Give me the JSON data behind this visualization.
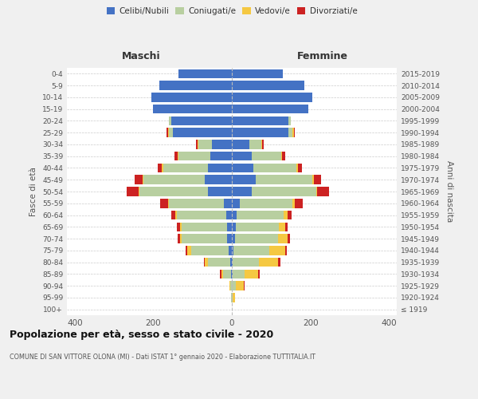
{
  "age_groups": [
    "100+",
    "95-99",
    "90-94",
    "85-89",
    "80-84",
    "75-79",
    "70-74",
    "65-69",
    "60-64",
    "55-59",
    "50-54",
    "45-49",
    "40-44",
    "35-39",
    "30-34",
    "25-29",
    "20-24",
    "15-19",
    "10-14",
    "5-9",
    "0-4"
  ],
  "birth_years": [
    "≤ 1919",
    "1920-1924",
    "1925-1929",
    "1930-1934",
    "1935-1939",
    "1940-1944",
    "1945-1949",
    "1950-1954",
    "1955-1959",
    "1960-1964",
    "1965-1969",
    "1970-1974",
    "1975-1979",
    "1980-1984",
    "1985-1989",
    "1990-1994",
    "1995-1999",
    "2000-2004",
    "2005-2009",
    "2010-2014",
    "2015-2019"
  ],
  "maschi": {
    "celibi": [
      0,
      0,
      0,
      2,
      5,
      8,
      12,
      12,
      15,
      20,
      60,
      70,
      60,
      55,
      50,
      150,
      155,
      200,
      205,
      185,
      135
    ],
    "coniugati": [
      0,
      2,
      5,
      20,
      55,
      95,
      115,
      115,
      125,
      140,
      175,
      155,
      115,
      80,
      35,
      10,
      5,
      0,
      0,
      0,
      0
    ],
    "vedovi": [
      0,
      0,
      2,
      5,
      8,
      10,
      5,
      5,
      5,
      3,
      3,
      3,
      3,
      3,
      3,
      3,
      0,
      0,
      0,
      0,
      0
    ],
    "divorziati": [
      0,
      0,
      0,
      3,
      3,
      5,
      5,
      8,
      10,
      20,
      30,
      20,
      10,
      8,
      3,
      3,
      0,
      0,
      0,
      0,
      0
    ]
  },
  "femmine": {
    "nubili": [
      0,
      0,
      0,
      2,
      3,
      5,
      8,
      10,
      12,
      20,
      50,
      60,
      55,
      50,
      45,
      145,
      145,
      195,
      205,
      185,
      130
    ],
    "coniugate": [
      0,
      3,
      10,
      30,
      65,
      90,
      110,
      110,
      120,
      135,
      165,
      145,
      110,
      75,
      30,
      10,
      5,
      0,
      0,
      0,
      0
    ],
    "vedove": [
      0,
      5,
      20,
      35,
      50,
      40,
      25,
      15,
      10,
      5,
      3,
      3,
      3,
      3,
      3,
      3,
      0,
      0,
      0,
      0,
      0
    ],
    "divorziate": [
      0,
      0,
      2,
      3,
      5,
      5,
      5,
      8,
      10,
      20,
      30,
      20,
      10,
      8,
      3,
      3,
      0,
      0,
      0,
      0,
      0
    ]
  },
  "colors": {
    "celibi": "#4472c4",
    "coniugati": "#b8cfa0",
    "vedovi": "#f5c842",
    "divorziati": "#cc2222"
  },
  "xlim": 420,
  "title": "Popolazione per età, sesso e stato civile - 2020",
  "subtitle": "COMUNE DI SAN VITTORE OLONA (MI) - Dati ISTAT 1° gennaio 2020 - Elaborazione TUTTITALIA.IT",
  "xlabel_left": "Maschi",
  "xlabel_right": "Femmine",
  "ylabel_left": "Fasce di età",
  "ylabel_right": "Anni di nascita",
  "bg_color": "#f0f0f0",
  "plot_bg_color": "#ffffff"
}
